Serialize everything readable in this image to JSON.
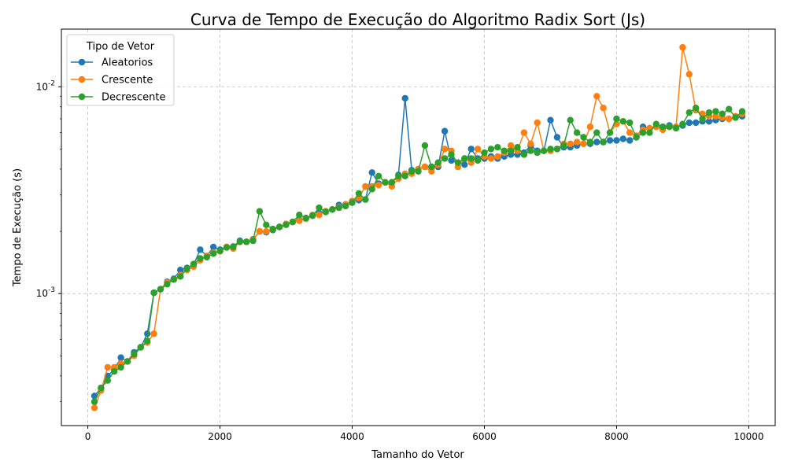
{
  "chart_data": {
    "type": "line",
    "title": "Curva de Tempo de Execução do Algoritmo Radix Sort (Js)",
    "xlabel": "Tamanho do Vetor",
    "ylabel": "Tempo de Execução (s)",
    "xlim": [
      -400,
      10400
    ],
    "ylim": [
      0.00023,
      0.019
    ],
    "yscale": "log",
    "grid": true,
    "legend_title": "Tipo de Vetor",
    "legend_position": "top-left",
    "x_ticks": [
      0,
      2000,
      4000,
      6000,
      8000,
      10000
    ],
    "x_tick_labels": [
      "0",
      "2000",
      "4000",
      "6000",
      "8000",
      "10000"
    ],
    "y_ticks": [
      0.001,
      0.01
    ],
    "y_tick_labels": [
      "10^-3",
      "10^-2"
    ],
    "x": [
      100,
      200,
      300,
      400,
      500,
      600,
      700,
      800,
      900,
      1000,
      1100,
      1200,
      1300,
      1400,
      1500,
      1600,
      1700,
      1800,
      1900,
      2000,
      2100,
      2200,
      2300,
      2400,
      2500,
      2600,
      2700,
      2800,
      2900,
      3000,
      3100,
      3200,
      3300,
      3400,
      3500,
      3600,
      3700,
      3800,
      3900,
      4000,
      4100,
      4200,
      4300,
      4400,
      4500,
      4600,
      4700,
      4800,
      4900,
      5000,
      5100,
      5200,
      5300,
      5400,
      5500,
      5600,
      5700,
      5800,
      5900,
      6000,
      6100,
      6200,
      6300,
      6400,
      6500,
      6600,
      6700,
      6800,
      6900,
      7000,
      7100,
      7200,
      7300,
      7400,
      7500,
      7600,
      7700,
      7800,
      7900,
      8000,
      8100,
      8200,
      8300,
      8400,
      8500,
      8600,
      8700,
      8800,
      8900,
      9000,
      9100,
      9200,
      9300,
      9400,
      9500,
      9600,
      9700,
      9800,
      9900
    ],
    "series": [
      {
        "name": "Aleatorios",
        "color": "#1f77b4",
        "values": [
          0.00032,
          0.00035,
          0.0004,
          0.00043,
          0.00049,
          0.00047,
          0.00052,
          0.00055,
          0.00064,
          0.00101,
          0.00105,
          0.00114,
          0.00118,
          0.0013,
          0.00133,
          0.00138,
          0.00163,
          0.00152,
          0.00168,
          0.00163,
          0.00168,
          0.00169,
          0.0018,
          0.00178,
          0.00183,
          0.002,
          0.00198,
          0.00203,
          0.0021,
          0.00217,
          0.00222,
          0.00227,
          0.0023,
          0.00238,
          0.00245,
          0.0025,
          0.00255,
          0.00268,
          0.0027,
          0.0028,
          0.00283,
          0.00285,
          0.00385,
          0.0034,
          0.00345,
          0.00345,
          0.00375,
          0.0088,
          0.00395,
          0.004,
          0.0041,
          0.0041,
          0.0041,
          0.0061,
          0.0044,
          0.0043,
          0.0042,
          0.005,
          0.0045,
          0.0045,
          0.0046,
          0.0045,
          0.0046,
          0.0047,
          0.0047,
          0.0048,
          0.0052,
          0.0049,
          0.0049,
          0.0069,
          0.0057,
          0.0051,
          0.0051,
          0.0052,
          0.0053,
          0.0053,
          0.0054,
          0.0054,
          0.0055,
          0.0055,
          0.0056,
          0.0055,
          0.0057,
          0.0064,
          0.0063,
          0.0064,
          0.0064,
          0.0065,
          0.0064,
          0.0065,
          0.0067,
          0.0067,
          0.0068,
          0.0068,
          0.0069,
          0.007,
          0.007,
          0.0071,
          0.0072
        ]
      },
      {
        "name": "Crescente",
        "color": "#ff7f0e",
        "values": [
          0.00028,
          0.00034,
          0.00044,
          0.00044,
          0.00046,
          0.00047,
          0.0005,
          0.00055,
          0.00058,
          0.00064,
          0.00105,
          0.00113,
          0.00117,
          0.00123,
          0.0013,
          0.00135,
          0.00145,
          0.00152,
          0.00158,
          0.0016,
          0.00168,
          0.00165,
          0.00178,
          0.00178,
          0.00182,
          0.002,
          0.002,
          0.00205,
          0.0021,
          0.00217,
          0.00222,
          0.00225,
          0.0023,
          0.0024,
          0.0024,
          0.0025,
          0.00255,
          0.00262,
          0.0027,
          0.0028,
          0.0029,
          0.0033,
          0.0033,
          0.00335,
          0.00345,
          0.0033,
          0.0036,
          0.0038,
          0.0038,
          0.004,
          0.0041,
          0.0039,
          0.0042,
          0.005,
          0.0049,
          0.0041,
          0.0045,
          0.0043,
          0.005,
          0.0046,
          0.0045,
          0.0046,
          0.0048,
          0.0052,
          0.0049,
          0.006,
          0.0053,
          0.0067,
          0.0049,
          0.0049,
          0.005,
          0.0053,
          0.0053,
          0.0054,
          0.0053,
          0.0064,
          0.009,
          0.0079,
          0.006,
          0.0066,
          0.0068,
          0.006,
          0.0058,
          0.0062,
          0.0063,
          0.0064,
          0.0062,
          0.0064,
          0.0064,
          0.0155,
          0.0115,
          0.0077,
          0.0074,
          0.0072,
          0.0072,
          0.0071,
          0.007,
          0.0072,
          0.0074
        ]
      },
      {
        "name": "Decrescente",
        "color": "#2ca02c",
        "values": [
          0.0003,
          0.00035,
          0.00038,
          0.00042,
          0.00044,
          0.00047,
          0.00051,
          0.00055,
          0.00059,
          0.00101,
          0.00105,
          0.00111,
          0.00117,
          0.00121,
          0.00132,
          0.00139,
          0.00148,
          0.0015,
          0.00156,
          0.00161,
          0.00167,
          0.00168,
          0.00178,
          0.00178,
          0.0018,
          0.0025,
          0.00215,
          0.00205,
          0.0021,
          0.00215,
          0.00222,
          0.0024,
          0.00232,
          0.00238,
          0.0026,
          0.00248,
          0.00255,
          0.0026,
          0.00265,
          0.00275,
          0.00305,
          0.00285,
          0.0032,
          0.0037,
          0.00345,
          0.00345,
          0.0037,
          0.0037,
          0.0039,
          0.0039,
          0.0052,
          0.0041,
          0.0043,
          0.0045,
          0.0047,
          0.0043,
          0.0045,
          0.0045,
          0.0044,
          0.0048,
          0.005,
          0.0051,
          0.0049,
          0.0049,
          0.0051,
          0.0047,
          0.0049,
          0.0048,
          0.0049,
          0.005,
          0.005,
          0.0052,
          0.0069,
          0.006,
          0.0057,
          0.0054,
          0.006,
          0.0054,
          0.006,
          0.007,
          0.0068,
          0.0067,
          0.0057,
          0.006,
          0.006,
          0.0066,
          0.0064,
          0.0064,
          0.0063,
          0.0066,
          0.0075,
          0.0079,
          0.007,
          0.0075,
          0.0076,
          0.0074,
          0.0078,
          0.0071,
          0.0076
        ]
      }
    ]
  }
}
